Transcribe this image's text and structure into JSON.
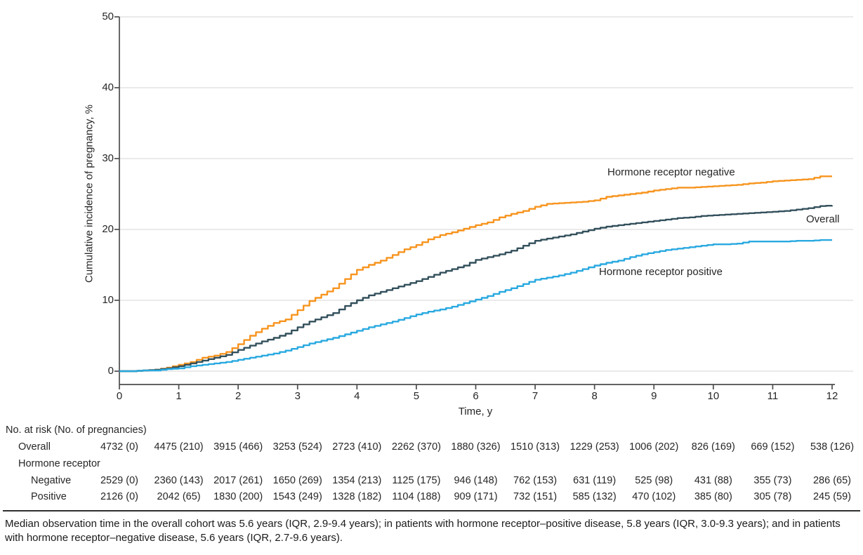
{
  "chart_data": {
    "type": "line",
    "subtype": "step-cumulative-incidence",
    "title": "",
    "xlabel": "Time, y",
    "ylabel": "Cumulative incidence of pregnancy, %",
    "xlim": [
      0,
      12
    ],
    "ylim": [
      0,
      50
    ],
    "xticks": [
      0,
      1,
      2,
      3,
      4,
      5,
      6,
      7,
      8,
      9,
      10,
      11,
      12
    ],
    "yticks": [
      0,
      10,
      20,
      30,
      40,
      50
    ],
    "grid": "horizontal",
    "legend_position": "inline-annotations",
    "grid_color": "#dedede",
    "axis_color": "#4d4d4d",
    "text_color": "#262626",
    "x": [
      0,
      0.2,
      0.4,
      0.6,
      0.8,
      1,
      1.2,
      1.4,
      1.6,
      1.8,
      2,
      2.2,
      2.4,
      2.6,
      2.8,
      3,
      3.2,
      3.4,
      3.6,
      3.8,
      4,
      4.2,
      4.4,
      4.6,
      4.8,
      5,
      5.2,
      5.4,
      5.6,
      5.8,
      6,
      6.2,
      6.4,
      6.6,
      6.8,
      7,
      7.2,
      7.4,
      7.6,
      7.8,
      8,
      8.2,
      8.4,
      8.6,
      8.8,
      9,
      9.2,
      9.4,
      9.6,
      9.8,
      10,
      10.2,
      10.4,
      10.6,
      10.8,
      11,
      11.2,
      11.4,
      11.6,
      11.8,
      12
    ],
    "series": [
      {
        "name": "Hormone receptor negative",
        "color": "#F7941E",
        "y": [
          0,
          0,
          0.1,
          0.2,
          0.5,
          0.9,
          1.3,
          1.9,
          2.2,
          2.7,
          3.8,
          5.0,
          6.0,
          6.8,
          7.3,
          8.6,
          9.9,
          10.8,
          11.7,
          13.0,
          14.3,
          15.0,
          15.6,
          16.4,
          17.2,
          17.8,
          18.6,
          19.2,
          19.6,
          20.1,
          20.6,
          21.0,
          21.7,
          22.2,
          22.6,
          23.2,
          23.6,
          23.7,
          23.8,
          23.9,
          24.1,
          24.6,
          24.8,
          25.0,
          25.2,
          25.5,
          25.7,
          25.9,
          25.9,
          26.0,
          26.1,
          26.2,
          26.3,
          26.5,
          26.6,
          26.8,
          26.9,
          27.0,
          27.1,
          27.5,
          27.5
        ]
      },
      {
        "name": "Overall",
        "color": "#33505C",
        "y": [
          0,
          0,
          0.1,
          0.2,
          0.4,
          0.7,
          1.1,
          1.5,
          1.9,
          2.3,
          3.0,
          3.6,
          4.2,
          4.7,
          5.3,
          6.2,
          7.0,
          7.6,
          8.2,
          9.2,
          10.0,
          10.7,
          11.2,
          11.7,
          12.2,
          12.7,
          13.3,
          13.9,
          14.4,
          14.9,
          15.7,
          16.1,
          16.5,
          17.0,
          17.7,
          18.4,
          18.7,
          19.0,
          19.3,
          19.7,
          20.1,
          20.4,
          20.6,
          20.8,
          21.0,
          21.2,
          21.4,
          21.6,
          21.7,
          21.9,
          22.0,
          22.1,
          22.2,
          22.3,
          22.4,
          22.5,
          22.6,
          22.8,
          23.0,
          23.3,
          23.4
        ]
      },
      {
        "name": "Hormone receptor positive",
        "color": "#29A9E0",
        "y": [
          0,
          0,
          0.1,
          0.1,
          0.3,
          0.4,
          0.7,
          0.9,
          1.1,
          1.3,
          1.6,
          1.9,
          2.2,
          2.5,
          2.9,
          3.4,
          3.9,
          4.3,
          4.7,
          5.2,
          5.7,
          6.2,
          6.6,
          7.0,
          7.5,
          8.0,
          8.4,
          8.7,
          9.1,
          9.6,
          10.1,
          10.6,
          11.2,
          11.7,
          12.3,
          12.9,
          13.2,
          13.5,
          13.9,
          14.4,
          14.9,
          15.3,
          15.6,
          16.1,
          16.5,
          16.8,
          17.1,
          17.3,
          17.5,
          17.7,
          17.9,
          17.9,
          18.0,
          18.3,
          18.3,
          18.3,
          18.3,
          18.4,
          18.4,
          18.5,
          18.5
        ]
      }
    ]
  },
  "risk_table": {
    "header": "No. at risk (No. of pregnancies)",
    "rows": [
      {
        "label": "Overall",
        "indent": 1,
        "values": [
          "4732 (0)",
          "4475 (210)",
          "3915 (466)",
          "3253 (524)",
          "2723 (410)",
          "2262 (370)",
          "1880 (326)",
          "1510 (313)",
          "1229 (253)",
          "1006 (202)",
          "826 (169)",
          "669 (152)",
          "538 (126)"
        ]
      },
      {
        "label": "Hormone receptor",
        "indent": 1,
        "values": []
      },
      {
        "label": "Negative",
        "indent": 2,
        "values": [
          "2529 (0)",
          "2360 (143)",
          "2017 (261)",
          "1650 (269)",
          "1354 (213)",
          "1125 (175)",
          "946 (148)",
          "762 (153)",
          "631 (119)",
          "525 (98)",
          "431 (88)",
          "355 (73)",
          "286 (65)"
        ]
      },
      {
        "label": "Positive",
        "indent": 2,
        "values": [
          "2126 (0)",
          "2042 (65)",
          "1830 (200)",
          "1543 (249)",
          "1328 (182)",
          "1104 (188)",
          "909 (171)",
          "732 (151)",
          "585 (132)",
          "470 (102)",
          "385 (80)",
          "305 (78)",
          "245 (59)"
        ]
      }
    ]
  },
  "footnote": "Median observation time in the overall cohort was 5.6 years (IQR, 2.9-9.4 years); in patients with hormone receptor–positive disease, 5.8 years (IQR, 3.0-9.3 years); and in patients with hormone receptor–negative disease, 5.6 years (IQR, 2.7-9.6 years)."
}
